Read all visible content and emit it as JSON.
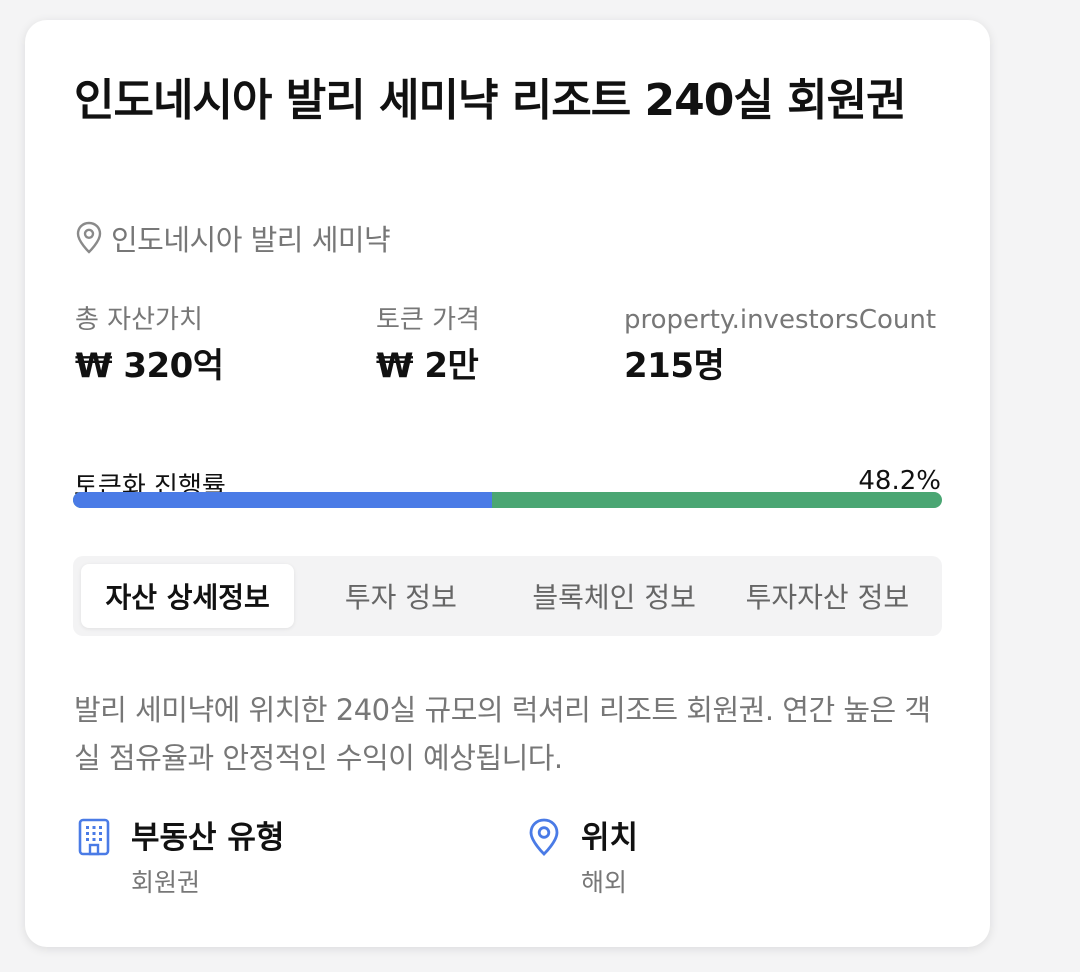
{
  "property": {
    "title": "인도네시아 발리 세미냑 리조트 240실 회원권",
    "location": "인도네시아 발리 세미냑",
    "description": "발리 세미냑에 위치한 240실 규모의 럭셔리 리조트 회원권. 연간 높은 객실 점유율과 안정적인 수익이 예상됩니다."
  },
  "stats": [
    {
      "label": "총 자산가치",
      "value": "₩ 320억"
    },
    {
      "label": "토큰 가격",
      "value": "₩ 2만"
    },
    {
      "label": "property.investorsCount",
      "value": "215명"
    }
  ],
  "progress": {
    "label": "토큰화 진행률",
    "percent_text": "48.2%",
    "percent": 48.2,
    "fill_color": "#4a7be6",
    "track_color": "#4aa673"
  },
  "tabs": [
    {
      "label": "자산 상세정보",
      "active": true
    },
    {
      "label": "투자 정보",
      "active": false
    },
    {
      "label": "블록체인 정보",
      "active": false
    },
    {
      "label": "투자자산 정보",
      "active": false
    }
  ],
  "details": [
    {
      "icon": "building-icon",
      "title": "부동산 유형",
      "value": "회원권"
    },
    {
      "icon": "map-pin-icon",
      "title": "위치",
      "value": "해외"
    }
  ],
  "accent_color": "#4a7be6"
}
